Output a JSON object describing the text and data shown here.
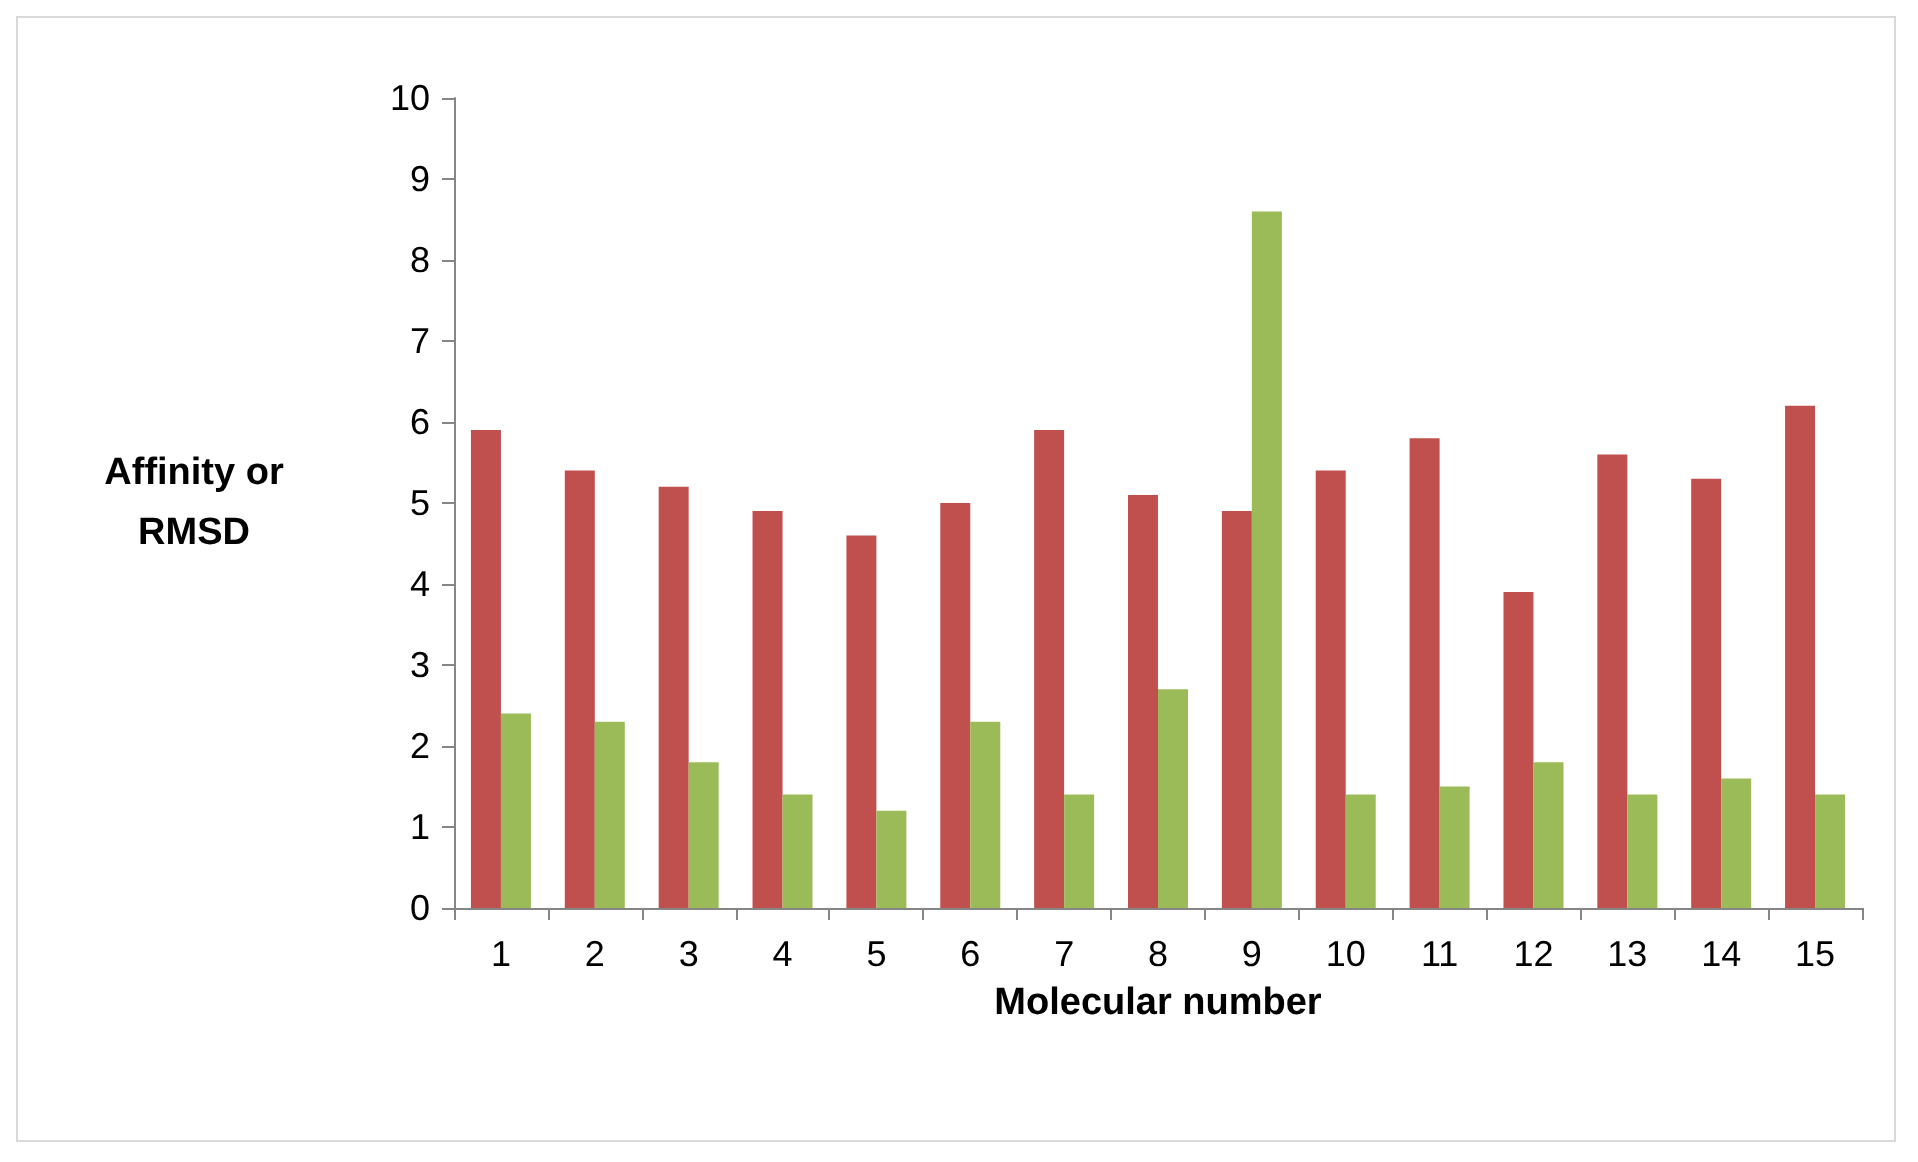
{
  "chart_data": {
    "type": "bar",
    "xlabel": "Molecular number",
    "ylabel": "Affinity or\nRMSD",
    "categories": [
      "1",
      "2",
      "3",
      "4",
      "5",
      "6",
      "7",
      "8",
      "9",
      "10",
      "11",
      "12",
      "13",
      "14",
      "15"
    ],
    "series": [
      {
        "color": "#c0504d",
        "values": [
          5.9,
          5.4,
          5.2,
          4.9,
          4.6,
          5.0,
          5.9,
          5.1,
          4.9,
          5.4,
          5.8,
          3.9,
          5.6,
          5.3,
          6.2
        ]
      },
      {
        "color": "#9bbb59",
        "values": [
          2.4,
          2.3,
          1.8,
          1.4,
          1.2,
          2.3,
          1.4,
          2.7,
          8.6,
          1.4,
          1.5,
          1.8,
          1.4,
          1.6,
          1.4
        ]
      }
    ],
    "ylim": [
      0,
      10
    ],
    "yticks": [
      0,
      1,
      2,
      3,
      4,
      5,
      6,
      7,
      8,
      9,
      10
    ],
    "grid": false
  }
}
